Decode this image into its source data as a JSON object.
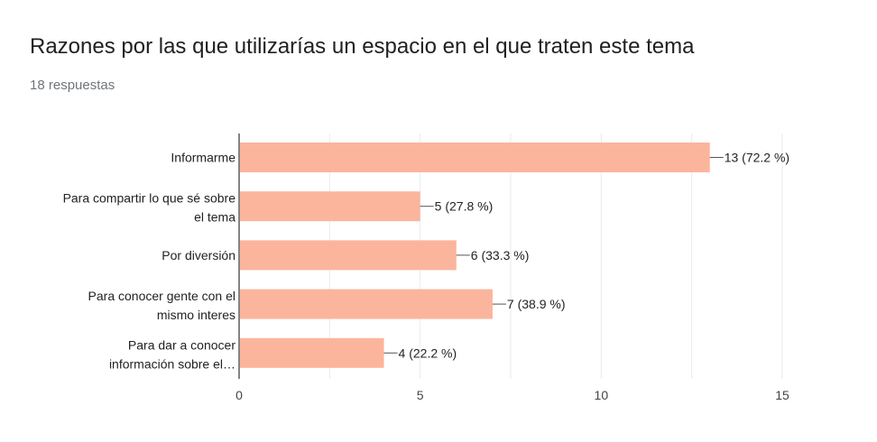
{
  "header": {
    "title": "Razones por las que utilizarías un espacio en el que traten este tema",
    "subtitle": "18 respuestas"
  },
  "chart_data": {
    "type": "bar",
    "orientation": "horizontal",
    "categories": [
      [
        "Informarme"
      ],
      [
        "Para compartir lo que sé sobre",
        "el tema"
      ],
      [
        "Por diversión"
      ],
      [
        "Para conocer gente con el",
        "mismo interes"
      ],
      [
        "Para dar a conocer",
        "información sobre el…"
      ]
    ],
    "values": [
      13,
      5,
      6,
      7,
      4
    ],
    "value_labels": [
      "13 (72.2 %)",
      "5 (27.8 %)",
      "6 (33.3 %)",
      "7 (38.9 %)",
      "4 (22.2 %)"
    ],
    "xlim": [
      0,
      15
    ],
    "xticks": [
      0,
      5,
      10,
      15
    ],
    "grid": true,
    "bar_color": "#fbb59c",
    "axis_color": "#333333",
    "grid_color": "#ebebeb"
  }
}
